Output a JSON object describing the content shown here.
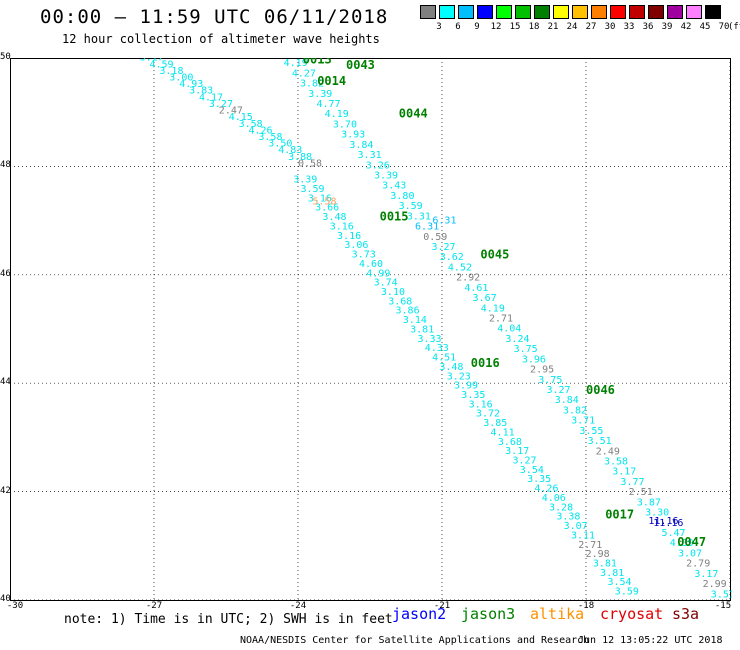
{
  "title": "00:00 – 11:59 UTC 06/11/2018",
  "subtitle": "12 hour collection of altimeter wave heights",
  "colorbar": {
    "unit": "(ft)",
    "stops": [
      {
        "label": "3",
        "color": "#808080"
      },
      {
        "label": "6",
        "color": "#00ffff"
      },
      {
        "label": "9",
        "color": "#00bfff"
      },
      {
        "label": "12",
        "color": "#0000ff"
      },
      {
        "label": "15",
        "color": "#00ff00"
      },
      {
        "label": "18",
        "color": "#00c000"
      },
      {
        "label": "21",
        "color": "#008000"
      },
      {
        "label": "24",
        "color": "#ffff00"
      },
      {
        "label": "27",
        "color": "#ffc000"
      },
      {
        "label": "30",
        "color": "#ff8000"
      },
      {
        "label": "33",
        "color": "#ff0000"
      },
      {
        "label": "36",
        "color": "#c00000"
      },
      {
        "label": "39",
        "color": "#800000"
      },
      {
        "label": "42",
        "color": "#a000a0"
      },
      {
        "label": "45",
        "color": "#ff80ff"
      },
      {
        "label": "70",
        "color": "#000000"
      }
    ]
  },
  "axes": {
    "lon_ticks": [
      "-30",
      "-27",
      "-24",
      "-21",
      "-18",
      "-15"
    ],
    "lat_ticks": [
      "50",
      "48",
      "46",
      "44",
      "42",
      "40"
    ],
    "lon_range": [
      -30,
      -15
    ],
    "lat_range": [
      40,
      50
    ],
    "grid": "dotted"
  },
  "passes": [
    {
      "id": "0013",
      "label_lon": -23.9,
      "label_lat": 49.9
    },
    {
      "id": "0014",
      "label_lon": -23.6,
      "label_lat": 49.5
    },
    {
      "id": "0043",
      "label_lon": -23.0,
      "label_lat": 49.8
    },
    {
      "id": "0044",
      "label_lon": -21.9,
      "label_lat": 48.9
    },
    {
      "id": "0015",
      "label_lon": -22.3,
      "label_lat": 47.0
    },
    {
      "id": "0045",
      "label_lon": -20.2,
      "label_lat": 46.3
    },
    {
      "id": "0016",
      "label_lon": -20.4,
      "label_lat": 44.3
    },
    {
      "id": "0046",
      "label_lon": -18.0,
      "label_lat": 43.8
    },
    {
      "id": "0017",
      "label_lon": -17.6,
      "label_lat": 41.5
    },
    {
      "id": "0047",
      "label_lon": -16.1,
      "label_lat": 41.0
    }
  ],
  "tracks": [
    {
      "values": [
        "3.17",
        "4.59",
        "3.18",
        "3.00",
        "4.93",
        "3.83",
        "4.17",
        "3.27",
        "2.47",
        "4.15",
        "3.58",
        "4.26",
        "3.58",
        "3.50",
        "4.83",
        "3.88",
        "0.58"
      ],
      "lon_start": -27.3,
      "lat_start": 49.95,
      "lon_end": -24.0,
      "lat_end": 48.0
    },
    {
      "values": [
        "4.19",
        "4.27",
        "3.82",
        "3.39",
        "4.77",
        "4.19",
        "3.70",
        "3.93",
        "3.84",
        "3.31",
        "3.26",
        "3.39",
        "3.43",
        "3.80",
        "3.59",
        "3.31",
        "6.31",
        "0.59",
        "3.27",
        "3.62",
        "4.52",
        "2.92",
        "4.61",
        "3.67",
        "4.19",
        "2.71",
        "4.04",
        "3.24",
        "3.75",
        "3.96",
        "2.95",
        "3.75",
        "3.27",
        "3.84",
        "3.82",
        "3.71",
        "3.55",
        "3.51",
        "2.49",
        "3.58",
        "3.17",
        "3.77",
        "2.51",
        "3.87",
        "3.30",
        "11.16",
        "5.47",
        "4.39",
        "3.07",
        "2.79",
        "3.17",
        "2.99",
        "3.51"
      ],
      "lon_start": -24.3,
      "lat_start": 49.85,
      "lon_end": -15.4,
      "lat_end": 40.05
    },
    {
      "values": [
        "3.39",
        "3.59",
        "3.16",
        "3.66",
        "3.48",
        "3.16",
        "3.16",
        "3.06",
        "3.73",
        "4.60",
        "4.99",
        "3.74",
        "3.10",
        "3.68",
        "3.86",
        "3.14",
        "3.81",
        "3.33",
        "4.33",
        "4.51",
        "3.48",
        "3.23",
        "3.99",
        "3.35",
        "3.16",
        "3.72",
        "3.85",
        "4.11",
        "3.68",
        "3.17",
        "3.27",
        "3.54",
        "3.35",
        "4.26",
        "4.06",
        "3.28",
        "3.38",
        "3.07",
        "3.11",
        "2.71",
        "2.98",
        "3.81",
        "3.81",
        "3.54",
        "3.59"
      ],
      "lon_start": -24.1,
      "lat_start": 47.7,
      "lon_end": -17.4,
      "lat_end": 40.1
    }
  ],
  "highlighted": [
    {
      "value": "5.58",
      "lon": -23.7,
      "lat": 47.3,
      "color": "#ffa060"
    },
    {
      "value": "6.31",
      "lon": -21.2,
      "lat": 46.95,
      "color": "#00bfff"
    },
    {
      "value": "11.16",
      "lon": -16.7,
      "lat": 41.4,
      "color": "#0000c0"
    }
  ],
  "note": "note:  1) Time is in UTC;  2) SWH is in feet",
  "satellites": [
    {
      "name": "jason2",
      "color": "#0000ff"
    },
    {
      "name": "jason3",
      "color": "#008000"
    },
    {
      "name": "altika",
      "color": "#ff9000"
    },
    {
      "name": "cryosat",
      "color": "#e00000"
    },
    {
      "name": "s3a",
      "color": "#800000"
    }
  ],
  "credit": "NOAA/NESDIS Center for Satellite Applications and Research",
  "timestamp": "Jun 12 13:05:22 UTC 2018"
}
